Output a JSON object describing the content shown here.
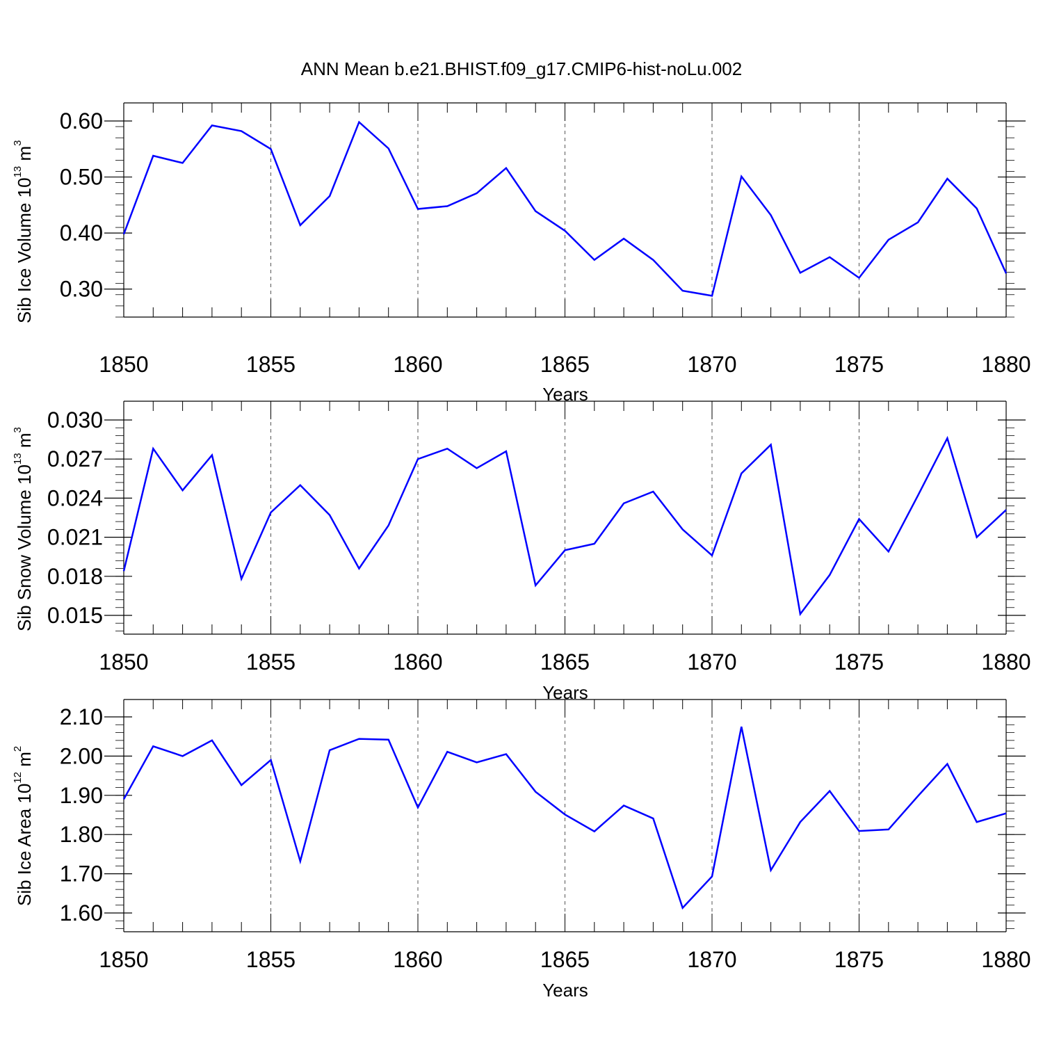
{
  "title": "ANN Mean b.e21.BHIST.f09_g17.CMIP6-hist-noLu.002",
  "colors": {
    "line": "#0000ff",
    "axis": "#000000",
    "grid": "#555555"
  },
  "chart_data": [
    {
      "type": "line",
      "title": "",
      "xlabel": "Years",
      "ylabel": {
        "text": "Sib Ice Volume 10",
        "exp1": "13",
        "unit": " m",
        "exp2": "3"
      },
      "xlim": [
        1850,
        1880
      ],
      "xticks": [
        "1850",
        "1855",
        "1860",
        "1865",
        "1870",
        "1875",
        "1880"
      ],
      "ylim": [
        0.25,
        0.6
      ],
      "yticks": [
        "0.30",
        "0.40",
        "0.50",
        "0.60"
      ],
      "grid": "vertical dashed at major x ticks",
      "x": [
        1850,
        1851,
        1852,
        1853,
        1854,
        1855,
        1856,
        1857,
        1858,
        1859,
        1860,
        1861,
        1862,
        1863,
        1864,
        1865,
        1866,
        1867,
        1868,
        1869,
        1870,
        1871,
        1872,
        1873,
        1874,
        1875,
        1876,
        1877,
        1878,
        1879,
        1880
      ],
      "series": [
        {
          "values": [
            0.398,
            0.538,
            0.525,
            0.592,
            0.582,
            0.55,
            0.414,
            0.466,
            0.598,
            0.551,
            0.443,
            0.448,
            0.471,
            0.516,
            0.439,
            0.404,
            0.352,
            0.39,
            0.352,
            0.297,
            0.288,
            0.501,
            0.432,
            0.329,
            0.357,
            0.32,
            0.388,
            0.419,
            0.497,
            0.444,
            0.328
          ]
        }
      ]
    },
    {
      "type": "line",
      "title": "",
      "xlabel": "Years",
      "ylabel": {
        "text": "Sib Snow Volume 10",
        "exp1": "13",
        "unit": " m",
        "exp2": "3"
      },
      "xlim": [
        1850,
        1880
      ],
      "xticks": [
        "1850",
        "1855",
        "1860",
        "1865",
        "1870",
        "1875",
        "1880"
      ],
      "ylim": [
        0.015,
        0.03
      ],
      "yticks": [
        "0.015",
        "0.018",
        "0.021",
        "0.024",
        "0.027",
        "0.030"
      ],
      "grid": "vertical dashed at major x ticks",
      "x": [
        1850,
        1851,
        1852,
        1853,
        1854,
        1855,
        1856,
        1857,
        1858,
        1859,
        1860,
        1861,
        1862,
        1863,
        1864,
        1865,
        1866,
        1867,
        1868,
        1869,
        1870,
        1871,
        1872,
        1873,
        1874,
        1875,
        1876,
        1877,
        1878,
        1879,
        1880
      ],
      "series": [
        {
          "values": [
            0.0184,
            0.0278,
            0.0246,
            0.0273,
            0.0178,
            0.0229,
            0.025,
            0.0227,
            0.0186,
            0.0219,
            0.027,
            0.0278,
            0.0263,
            0.0276,
            0.0173,
            0.02,
            0.0205,
            0.0236,
            0.0245,
            0.0216,
            0.0196,
            0.0259,
            0.0281,
            0.0151,
            0.0181,
            0.0224,
            0.0199,
            0.0242,
            0.0286,
            0.021,
            0.0231
          ]
        }
      ]
    },
    {
      "type": "line",
      "title": "",
      "xlabel": "Years",
      "ylabel": {
        "text": "Sib Ice Area 10",
        "exp1": "12",
        "unit": " m",
        "exp2": "2"
      },
      "xlim": [
        1850,
        1880
      ],
      "xticks": [
        "1850",
        "1855",
        "1860",
        "1865",
        "1870",
        "1875",
        "1880"
      ],
      "ylim": [
        1.6,
        2.1
      ],
      "yticks": [
        "1.60",
        "1.70",
        "1.80",
        "1.90",
        "2.00",
        "2.10"
      ],
      "grid": "vertical dashed at major x ticks",
      "x": [
        1850,
        1851,
        1852,
        1853,
        1854,
        1855,
        1856,
        1857,
        1858,
        1859,
        1860,
        1861,
        1862,
        1863,
        1864,
        1865,
        1866,
        1867,
        1868,
        1869,
        1870,
        1871,
        1872,
        1873,
        1874,
        1875,
        1876,
        1877,
        1878,
        1879,
        1880
      ],
      "series": [
        {
          "values": [
            1.89,
            2.025,
            2.0,
            2.04,
            1.926,
            1.99,
            1.732,
            2.015,
            2.044,
            2.042,
            1.869,
            2.011,
            1.984,
            2.005,
            1.909,
            1.851,
            1.808,
            1.874,
            1.841,
            1.613,
            1.693,
            2.075,
            1.709,
            1.832,
            1.911,
            1.809,
            1.813,
            1.898,
            1.98,
            1.832,
            1.854
          ]
        }
      ]
    }
  ]
}
